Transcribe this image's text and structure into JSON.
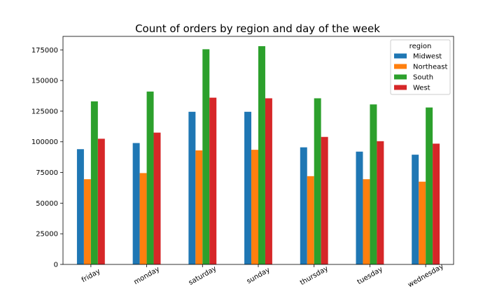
{
  "chart_data": {
    "type": "bar",
    "title": "Count of orders by region and day of the week",
    "xlabel": "",
    "ylabel": "",
    "categories": [
      "friday",
      "monday",
      "saturday",
      "sunday",
      "thursday",
      "tuesday",
      "wednesday"
    ],
    "series": [
      {
        "name": "Midwest",
        "color": "#1f77b4",
        "values": [
          94000,
          99000,
          124500,
          124500,
          95500,
          92000,
          89500
        ]
      },
      {
        "name": "Northeast",
        "color": "#ff7f0e",
        "values": [
          69500,
          74500,
          93000,
          93500,
          72000,
          69500,
          67500
        ]
      },
      {
        "name": "South",
        "color": "#2ca02c",
        "values": [
          133000,
          141000,
          175500,
          178000,
          135500,
          130500,
          128000
        ]
      },
      {
        "name": "West",
        "color": "#d62728",
        "values": [
          102500,
          107500,
          136000,
          135500,
          104000,
          100500,
          98500
        ]
      }
    ],
    "ylim": [
      0,
      186000
    ],
    "yticks": [
      "0",
      "25000",
      "50000",
      "75000",
      "100000",
      "125000",
      "150000",
      "175000"
    ],
    "grid": false,
    "legend": {
      "title": "region",
      "position": "top-right"
    }
  }
}
